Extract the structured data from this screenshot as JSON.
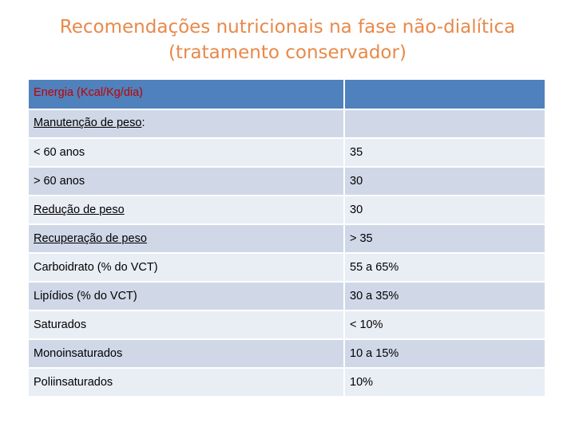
{
  "title": {
    "line1": "Recomendações nutricionais na fase não-dialítica",
    "line2": "(tratamento conservador)"
  },
  "table": {
    "header": {
      "label": "Energia (Kcal/Kg/dia)",
      "value": ""
    },
    "rows": [
      {
        "label": "Manutenção de peso",
        "suffix": ":",
        "value": ""
      },
      {
        "label": "< 60 anos",
        "value": "35"
      },
      {
        "label": "> 60 anos",
        "value": "30"
      },
      {
        "label": "Redução de peso",
        "value": "30"
      },
      {
        "label": "Recuperação de peso",
        "value": ">  35"
      },
      {
        "label": "Carboidrato (% do VCT)",
        "value": "55 a 65%"
      },
      {
        "label": "Lipídios (% do VCT)",
        "value": "30 a 35%"
      },
      {
        "label": "Saturados",
        "value": "< 10%"
      },
      {
        "label": "Monoinsaturados",
        "value": "10 a 15%"
      },
      {
        "label": "Poliinsaturados",
        "value": "10%"
      }
    ]
  },
  "colors": {
    "title": "#e8894a",
    "header_bg": "#4f81bd",
    "header_text": "#c00000",
    "row_light": "#e9edf4",
    "row_dark": "#d0d8e8"
  }
}
